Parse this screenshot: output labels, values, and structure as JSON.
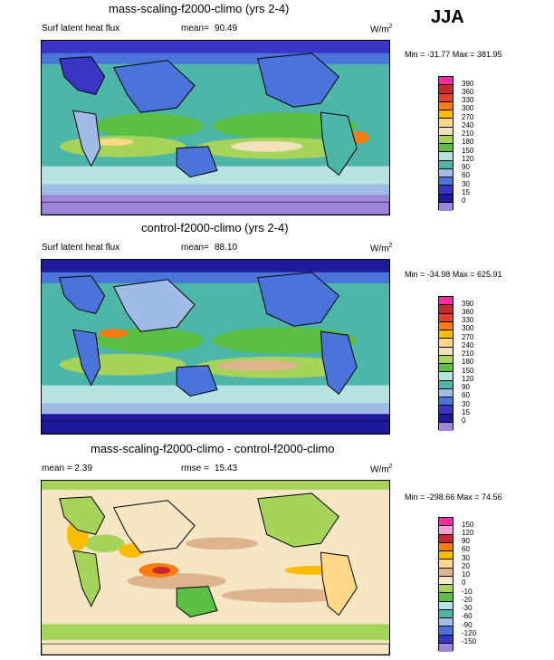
{
  "season": "JJA",
  "panels": [
    {
      "title": "mass-scaling-f2000-climo (yrs 2-4)",
      "left_label": "Surf latent heat flux",
      "mean_label": "mean=",
      "mean_value": "90.49",
      "units": "W/m",
      "units_exp": "2",
      "minmax": "Min = -31.77 Max = 381.95"
    },
    {
      "title": "control-f2000-climo (yrs 2-4)",
      "left_label": "Surf latent heat flux",
      "mean_label": "mean=",
      "mean_value": "88.10",
      "units": "W/m",
      "units_exp": "2",
      "minmax": "Min = -34.98 Max = 625.91"
    },
    {
      "title": "mass-scaling-f2000-climo - control-f2000-climo",
      "left_label": "mean =   2.39",
      "mean_label": "rmse =",
      "mean_value": "15.43",
      "units": "W/m",
      "units_exp": "2",
      "minmax": "Min = -298.66 Max = 74.56"
    }
  ],
  "colorbar_main": {
    "levels": [
      "390",
      "360",
      "330",
      "300",
      "270",
      "240",
      "210",
      "180",
      "150",
      "120",
      "90",
      "60",
      "30",
      "15",
      "0"
    ],
    "colors": [
      "#ff2aa0",
      "#c8282d",
      "#e6402a",
      "#ff7d10",
      "#ffbc00",
      "#ffd88a",
      "#f1e2bc",
      "#a6d35a",
      "#5cbf45",
      "#b7e2e2",
      "#4db6a8",
      "#9fbbe6",
      "#4a74d9",
      "#3a35c4",
      "#1d1b9c",
      "#9e86dc"
    ]
  },
  "colorbar_diff": {
    "levels": [
      "150",
      "120",
      "90",
      "60",
      "30",
      "20",
      "10",
      "0",
      "-10",
      "-20",
      "-30",
      "-60",
      "-90",
      "-120",
      "-150"
    ],
    "colors": [
      "#ff2aa0",
      "#ff9fd6",
      "#c8282d",
      "#ff7d10",
      "#ffbc00",
      "#ffd88a",
      "#deb48e",
      "#f7e6c4",
      "#a6d35a",
      "#5cbf45",
      "#b7e2e2",
      "#4db6a8",
      "#9fbbe6",
      "#4a74d9",
      "#3a35c4",
      "#9e86dc"
    ]
  }
}
